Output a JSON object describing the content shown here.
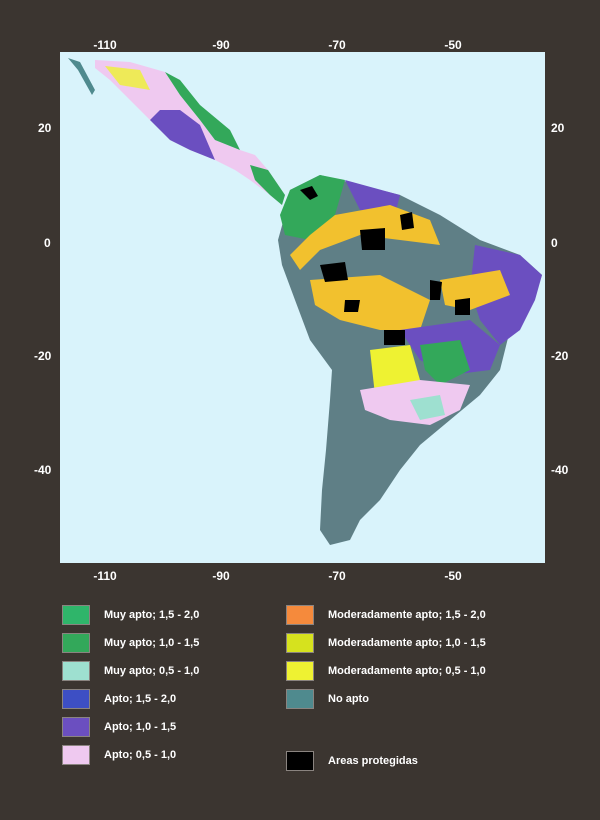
{
  "axes": {
    "longitude_ticks": [
      "-110",
      "-90",
      "-70",
      "-50"
    ],
    "latitude_ticks": [
      "20",
      "0",
      "-20",
      "-40"
    ]
  },
  "map": {
    "colors": {
      "ocean": "#d9f3fb",
      "no_apto": "#5f7f86",
      "protected": "#000000"
    }
  },
  "legend": [
    {
      "label": "Muy apto; 1,5 - 2,0",
      "color": "#2fb56a"
    },
    {
      "label": "Muy apto; 1,0 - 1,5",
      "color": "#33a85a"
    },
    {
      "label": "Muy apto; 0,5 - 1,0",
      "color": "#9ee0d0"
    },
    {
      "label": "Apto; 1,5 - 2,0",
      "color": "#3d4fc4"
    },
    {
      "label": "Apto; 1,0 - 1,5",
      "color": "#6b4fc0"
    },
    {
      "label": "Apto; 0,5 - 1,0",
      "color": "#efc9f0"
    },
    {
      "label": "Moderadamente apto; 1,5 - 2,0",
      "color": "#f58a3c"
    },
    {
      "label": "Moderadamente apto; 1,0 - 1,5",
      "color": "#d6e21e"
    },
    {
      "label": "Moderadamente apto; 0,5 - 1,0",
      "color": "#eef232"
    },
    {
      "label": "No apto",
      "color": "#4f8a8e"
    },
    {
      "label": "Areas protegidas",
      "color": "#000000"
    }
  ]
}
